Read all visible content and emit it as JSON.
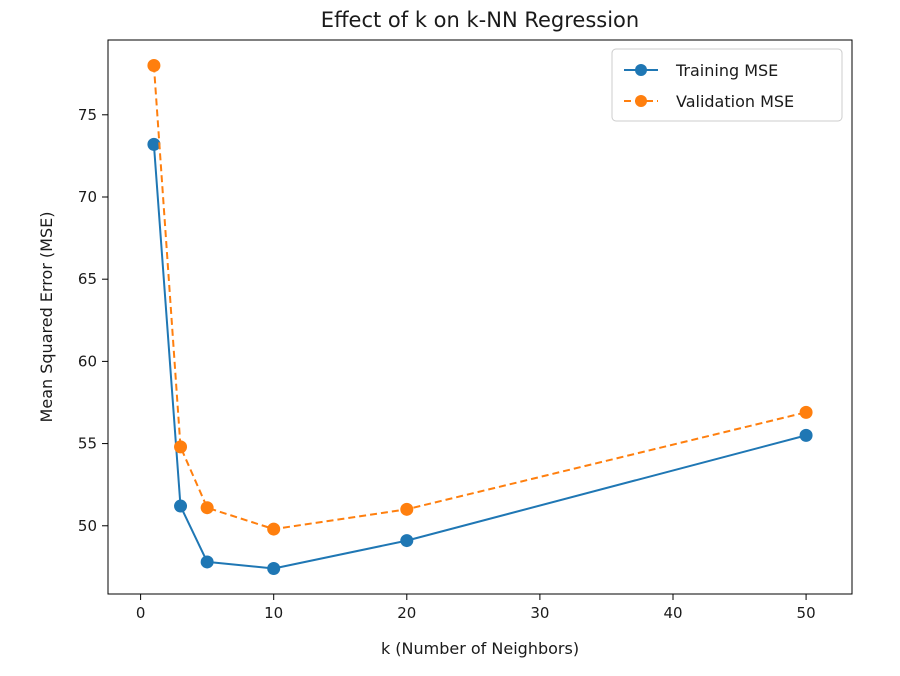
{
  "chart_data": {
    "type": "line",
    "title": "Effect of k on k-NN Regression",
    "xlabel": "k (Number of Neighbors)",
    "ylabel": "Mean Squared Error (MSE)",
    "x": [
      1,
      3,
      5,
      10,
      20,
      50
    ],
    "xlim": [
      -2.45,
      53.45
    ],
    "ylim": [
      45.85,
      79.55
    ],
    "xticks": [
      0,
      10,
      20,
      30,
      40,
      50
    ],
    "yticks": [
      50,
      55,
      60,
      65,
      70,
      75
    ],
    "grid": false,
    "legend_position": "top-right",
    "series": [
      {
        "name": "Training MSE",
        "values": [
          73.2,
          51.2,
          47.8,
          47.4,
          49.1,
          55.5
        ],
        "color": "#1f77b4",
        "line_style": "solid",
        "marker": "circle"
      },
      {
        "name": "Validation MSE",
        "values": [
          78.0,
          54.8,
          51.1,
          49.8,
          51.0,
          56.9
        ],
        "color": "#ff7f0e",
        "line_style": "dashed",
        "marker": "circle"
      }
    ]
  }
}
